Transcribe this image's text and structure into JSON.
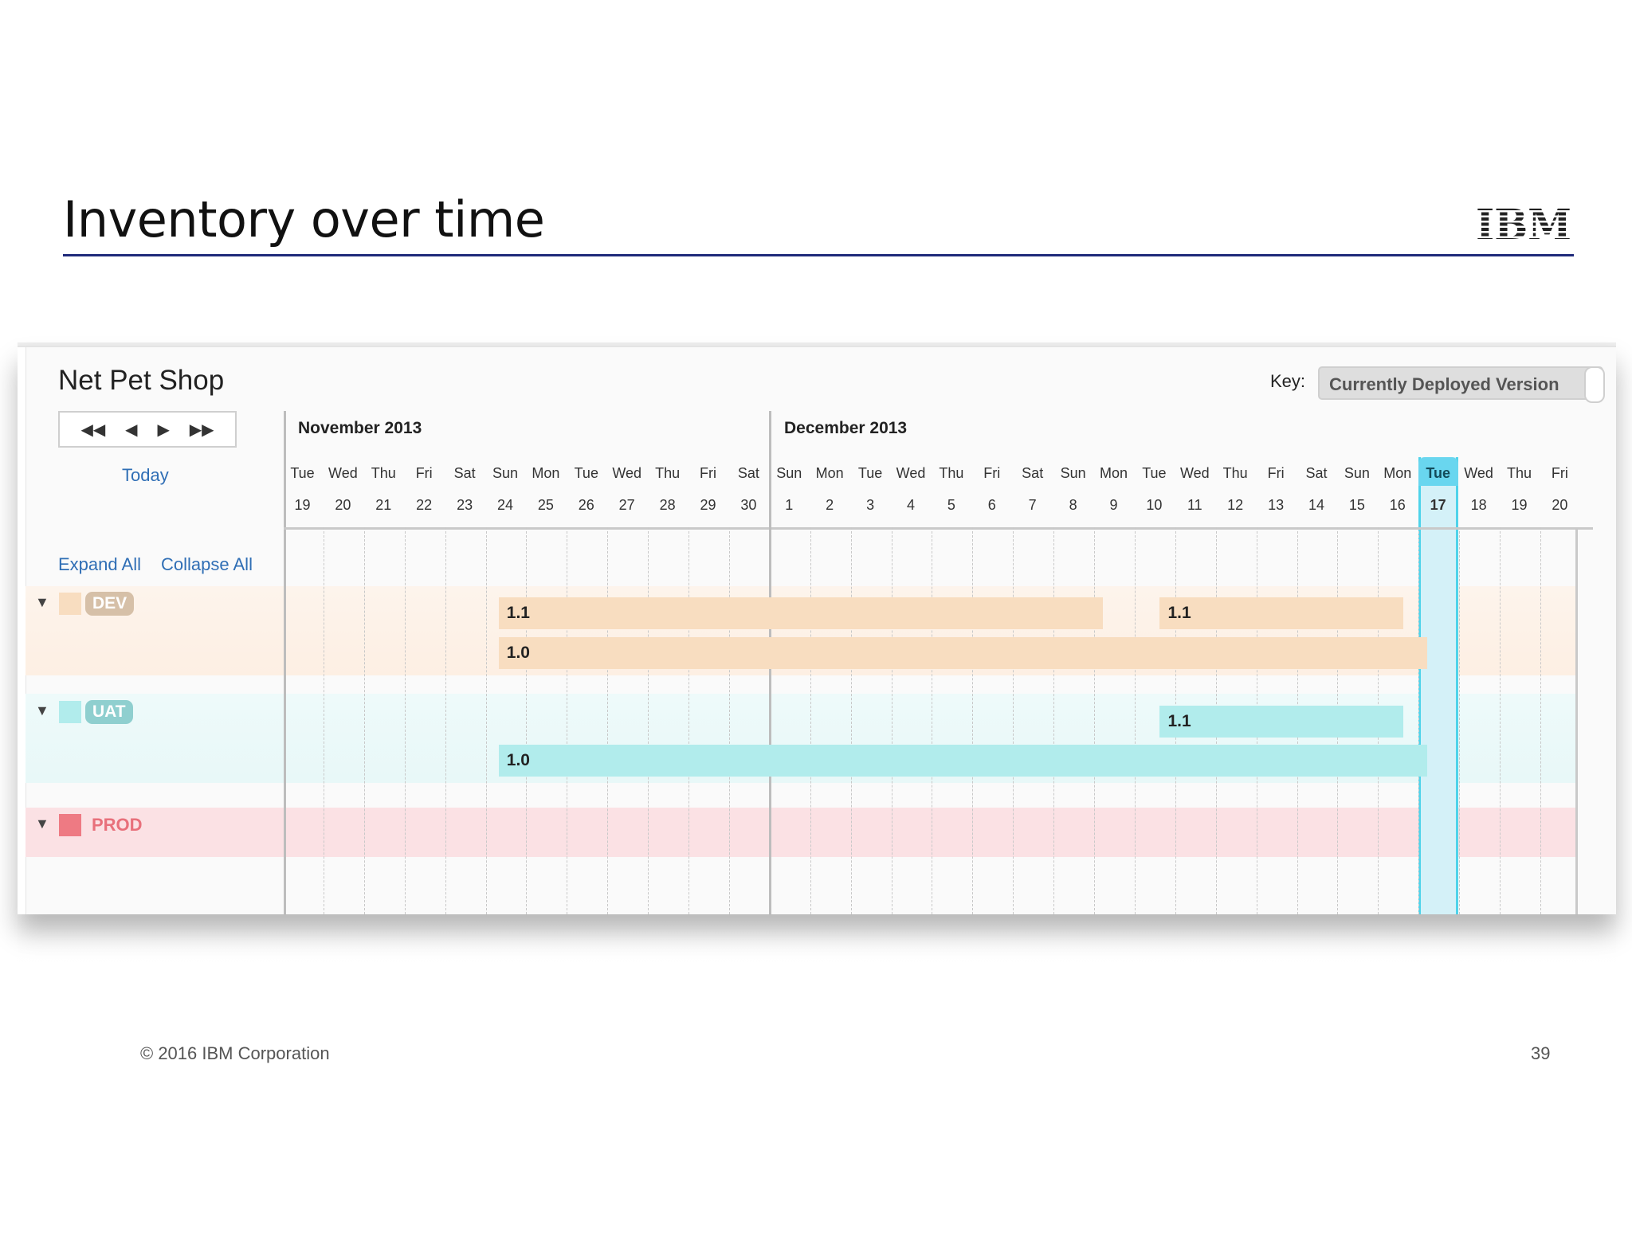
{
  "slide": {
    "title": "Inventory over time",
    "logo": "IBM",
    "copyright": "© 2016 IBM Corporation",
    "page_number": "39"
  },
  "app": {
    "title": "Net Pet Shop",
    "key_label": "Key:",
    "key_value": "Currently Deployed Version",
    "nav": {
      "first_icon": "◀◀",
      "prev_icon": "◀",
      "next_icon": "▶",
      "last_icon": "▶▶"
    },
    "today_label": "Today",
    "expand_all": "Expand All",
    "collapse_all": "Collapse All"
  },
  "timeline": {
    "months": [
      "November 2013",
      "December 2013"
    ],
    "days": [
      {
        "dow": "Tue",
        "num": "19"
      },
      {
        "dow": "Wed",
        "num": "20"
      },
      {
        "dow": "Thu",
        "num": "21"
      },
      {
        "dow": "Fri",
        "num": "22"
      },
      {
        "dow": "Sat",
        "num": "23"
      },
      {
        "dow": "Sun",
        "num": "24"
      },
      {
        "dow": "Mon",
        "num": "25"
      },
      {
        "dow": "Tue",
        "num": "26"
      },
      {
        "dow": "Wed",
        "num": "27"
      },
      {
        "dow": "Thu",
        "num": "28"
      },
      {
        "dow": "Fri",
        "num": "29"
      },
      {
        "dow": "Sat",
        "num": "30"
      },
      {
        "dow": "Sun",
        "num": "1"
      },
      {
        "dow": "Mon",
        "num": "2"
      },
      {
        "dow": "Tue",
        "num": "3"
      },
      {
        "dow": "Wed",
        "num": "4"
      },
      {
        "dow": "Thu",
        "num": "5"
      },
      {
        "dow": "Fri",
        "num": "6"
      },
      {
        "dow": "Sat",
        "num": "7"
      },
      {
        "dow": "Sun",
        "num": "8"
      },
      {
        "dow": "Mon",
        "num": "9"
      },
      {
        "dow": "Tue",
        "num": "10"
      },
      {
        "dow": "Wed",
        "num": "11"
      },
      {
        "dow": "Thu",
        "num": "12"
      },
      {
        "dow": "Fri",
        "num": "13"
      },
      {
        "dow": "Sat",
        "num": "14"
      },
      {
        "dow": "Sun",
        "num": "15"
      },
      {
        "dow": "Mon",
        "num": "16"
      },
      {
        "dow": "Tue",
        "num": "17"
      },
      {
        "dow": "Wed",
        "num": "18"
      },
      {
        "dow": "Thu",
        "num": "19"
      },
      {
        "dow": "Fri",
        "num": "20"
      }
    ],
    "today_index": 28
  },
  "environments": [
    {
      "name": "DEV",
      "arrow": "▼",
      "color": "#f8ddc0",
      "badge_color": "#d6c0a8",
      "bars": [
        {
          "label": "1.1",
          "start_day": 5.3,
          "end_day": 20.2
        },
        {
          "label": "1.1",
          "start_day": 21.6,
          "end_day": 27.6
        },
        {
          "label": "1.0",
          "start_day": 5.3,
          "end_day": 28.2
        }
      ]
    },
    {
      "name": "UAT",
      "arrow": "▼",
      "color": "#b1ecec",
      "badge_color": "#8fcfcf",
      "bars": [
        {
          "label": "1.1",
          "start_day": 21.6,
          "end_day": 27.6
        },
        {
          "label": "1.0",
          "start_day": 5.3,
          "end_day": 28.2
        }
      ]
    },
    {
      "name": "PROD",
      "arrow": "▼",
      "color": "#ee7a83",
      "bars": []
    }
  ]
}
